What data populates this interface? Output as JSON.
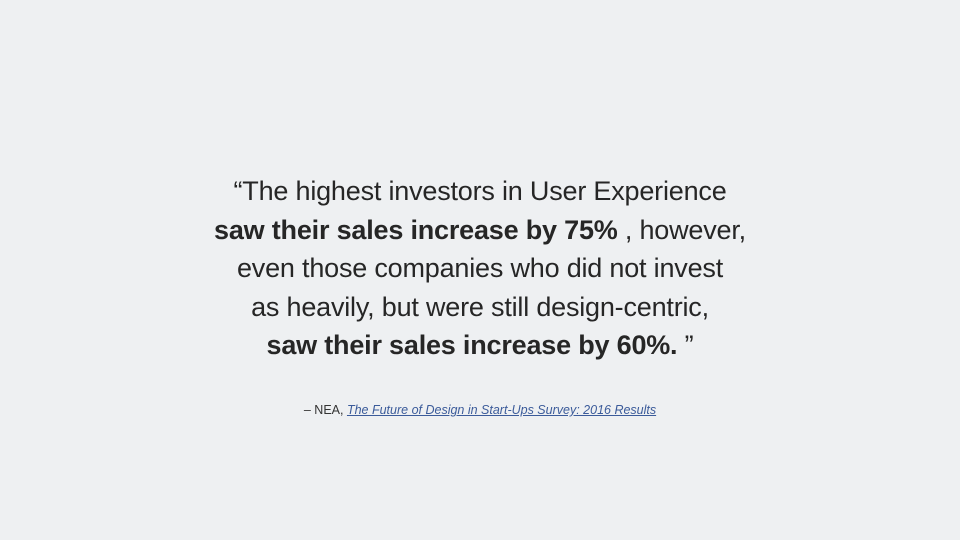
{
  "quote": {
    "line1": "“The highest investors in User Experience",
    "line2_bold": "saw their sales increase by 75%",
    "line2_rest": " , however,",
    "line3": "even those companies who did not invest",
    "line4": "as heavily, but were still design-centric,",
    "line5_bold": "saw their sales increase by 60%.",
    "line5_rest": " ”"
  },
  "attribution": {
    "prefix": "– NEA, ",
    "link_text": "The Future of Design in Start-Ups Survey: 2016 Results "
  },
  "colors": {
    "background": "#eef0f2",
    "text": "#262626",
    "link": "#3b5b9a"
  }
}
